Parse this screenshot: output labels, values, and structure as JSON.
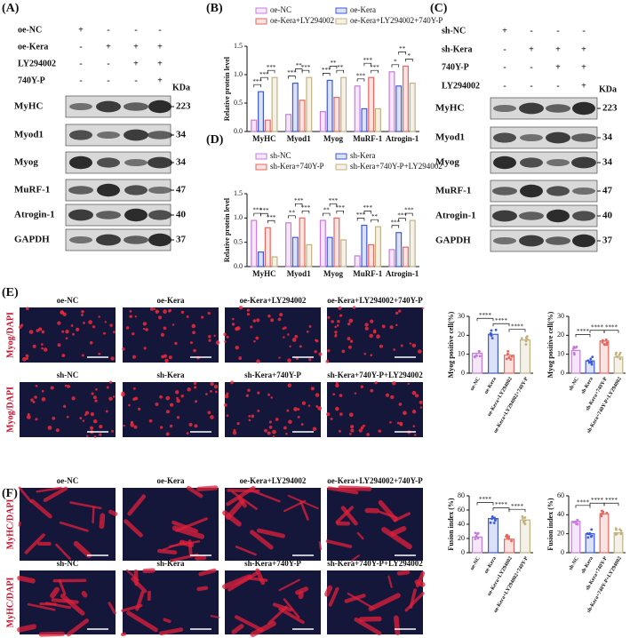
{
  "panel_labels": [
    "(A)",
    "(B)",
    "(C)",
    "(D)",
    "(E)",
    "(F)"
  ],
  "blot_a": {
    "conditions": [
      {
        "name": "oe-NC",
        "signs": [
          "+",
          "-",
          "-",
          "-"
        ]
      },
      {
        "name": "oe-Kera",
        "signs": [
          "-",
          "+",
          "+",
          "+"
        ]
      },
      {
        "name": "LY294002",
        "signs": [
          "-",
          "-",
          "+",
          "+"
        ]
      },
      {
        "name": "740Y-P",
        "signs": [
          "-",
          "-",
          "-",
          "+"
        ]
      }
    ],
    "unit": "KDa",
    "rows": [
      {
        "name": "MyHC",
        "kda": 223
      },
      {
        "name": "Myod1",
        "kda": 34
      },
      {
        "name": "Myog",
        "kda": 34
      },
      {
        "name": "MuRF-1",
        "kda": 47
      },
      {
        "name": "Atrogin-1",
        "kda": 40
      },
      {
        "name": "GAPDH",
        "kda": 37
      }
    ]
  },
  "blot_c": {
    "conditions": [
      {
        "name": "sh-NC",
        "signs": [
          "+",
          "-",
          "-",
          "-"
        ]
      },
      {
        "name": "sh-Kera",
        "signs": [
          "-",
          "+",
          "+",
          "+"
        ]
      },
      {
        "name": "740Y-P",
        "signs": [
          "-",
          "-",
          "+",
          "+"
        ]
      },
      {
        "name": "LY294002",
        "signs": [
          "-",
          "-",
          "-",
          "+"
        ]
      }
    ],
    "unit": "KDa",
    "rows": [
      {
        "name": "MyHC",
        "kda": 223
      },
      {
        "name": "Myod1",
        "kda": 34
      },
      {
        "name": "Myog",
        "kda": 34
      },
      {
        "name": "MuRF-1",
        "kda": 47
      },
      {
        "name": "Atrogin-1",
        "kda": 40
      },
      {
        "name": "GAPDH",
        "kda": 37
      }
    ]
  },
  "micrographs": {
    "e": {
      "stain": "Myog/DAPI",
      "rows": [
        [
          "oe-NC",
          "oe-Kera",
          "oe-Kera+LY294002",
          "oe-Kera+LY294002+740Y-P"
        ],
        [
          "sh-NC",
          "sh-Kera",
          "sh-Kera+740Y-P",
          "sh-Kera+740Y-P+LY294002"
        ]
      ]
    },
    "f": {
      "stain": "MyHC/DAPI",
      "rows": [
        [
          "oe-NC",
          "oe-Kera",
          "oe-Kera+LY294002",
          "oe-Kera+LY294002+740Y-P"
        ],
        [
          "sh-NC",
          "sh-Kera",
          "sh-Kera+740Y-P",
          "sh-Kera+740Y-P+LY294002"
        ]
      ]
    }
  },
  "chart_data": [
    {
      "type": "grouped-bar",
      "y_label": "Relative protein level",
      "categories": [
        "MyHC",
        "Myod1",
        "Myog",
        "MuRF-1",
        "Atrogin-1"
      ],
      "series": [
        {
          "name": "oe-NC",
          "color": "#c77cdd",
          "values": [
            0.2,
            0.3,
            0.35,
            0.8,
            1.05
          ]
        },
        {
          "name": "oe-Kera",
          "color": "#3b5bdb",
          "values": [
            0.7,
            0.85,
            0.9,
            0.4,
            0.8
          ]
        },
        {
          "name": "oe-Kera+LY294002",
          "color": "#e8665d",
          "values": [
            0.2,
            0.55,
            0.6,
            0.95,
            1.15
          ]
        },
        {
          "name": "oe-Kera+LY294002+740Y-P",
          "color": "#c2b280",
          "values": [
            0.95,
            0.95,
            0.95,
            0.4,
            0.85
          ]
        }
      ],
      "significance": [
        [
          "***",
          "***",
          "***"
        ],
        [
          "***",
          "**",
          "***"
        ],
        [
          "***",
          "**",
          "**"
        ],
        [
          "***",
          "***",
          "***"
        ],
        [
          "*",
          "**",
          "*"
        ]
      ],
      "ylim": [
        0,
        1.5
      ],
      "yticks": [
        {
          "value": 0,
          "label": "0.0"
        },
        0.5,
        {
          "value": 1,
          "label": "1.0"
        },
        1.5
      ]
    },
    {
      "type": "grouped-bar",
      "y_label": "Relative protein level",
      "categories": [
        "MyHC",
        "Myod1",
        "Myog",
        "MuRF-1",
        "Atrogin-1"
      ],
      "series": [
        {
          "name": "sh-NC",
          "color": "#c77cdd",
          "values": [
            0.95,
            0.9,
            0.95,
            0.22,
            0.35
          ]
        },
        {
          "name": "sh-Kera",
          "color": "#3b5bdb",
          "values": [
            0.3,
            0.6,
            0.6,
            0.85,
            0.7
          ]
        },
        {
          "name": "sh-Kera+740Y-P",
          "color": "#e8665d",
          "values": [
            0.8,
            1.0,
            1.0,
            0.45,
            0.4
          ]
        },
        {
          "name": "sh-Kera+740Y-P+LY294002",
          "color": "#c2b280",
          "values": [
            0.2,
            0.45,
            0.55,
            0.82,
            0.95
          ]
        }
      ],
      "significance": [
        [
          "***",
          "***",
          "***"
        ],
        [
          "**",
          "***",
          "***"
        ],
        [
          "**",
          "***",
          "***"
        ],
        [
          "***",
          "***",
          "**"
        ],
        [
          "***",
          "***",
          "***"
        ]
      ],
      "ylim": [
        0,
        1.5
      ],
      "yticks": [
        {
          "value": 0,
          "label": "0.0"
        },
        0.5,
        {
          "value": 1,
          "label": "1.0"
        },
        1.5
      ]
    },
    {
      "type": "bar",
      "y_label": "Myog positive cell(%)",
      "categories": [
        "oe-NC",
        "oe-Kera",
        "oe-Kera+LY294002",
        "oe-Kera+LY294002+740Y-P"
      ],
      "values": [
        10.5,
        20.5,
        9.5,
        17.5
      ],
      "colors": [
        "#c77cdd",
        "#3b5bdb",
        "#e8665d",
        "#c2b280"
      ],
      "significance": [
        "****",
        "****",
        "****"
      ],
      "ylim": [
        0,
        30
      ],
      "yticks": [
        0,
        10,
        20,
        30
      ]
    },
    {
      "type": "bar",
      "y_label": "Myog positive cell(%)",
      "categories": [
        "sh-NC",
        "sh-Kera",
        "sh-Kera+740Y-P",
        "sh-Kera+740Y-P+LY294002"
      ],
      "values": [
        12,
        6.5,
        17,
        8.5
      ],
      "colors": [
        "#c77cdd",
        "#3b5bdb",
        "#e8665d",
        "#c2b280"
      ],
      "significance": [
        "****",
        "****",
        "****"
      ],
      "ylim": [
        0,
        30
      ],
      "yticks": [
        0,
        10,
        20,
        30
      ]
    },
    {
      "type": "bar",
      "y_label": "Fusion index (%)",
      "categories": [
        "oe-NC",
        "oe-Kera",
        "oe-Kera+LY294002",
        "oe-Kera+LY294002+740Y-P"
      ],
      "values": [
        22,
        48,
        19,
        46
      ],
      "colors": [
        "#c77cdd",
        "#3b5bdb",
        "#e8665d",
        "#c2b280"
      ],
      "significance": [
        "****",
        "****",
        "****"
      ],
      "ylim": [
        0,
        80
      ],
      "yticks": [
        0,
        20,
        40,
        60,
        80
      ]
    },
    {
      "type": "bar",
      "y_label": "Fusion index (%)",
      "categories": [
        "sh-NC",
        "sh-Kera",
        "sh-Kera+740Y-P",
        "sh-Kera+740Y-P+LY294002"
      ],
      "values": [
        33,
        20,
        41,
        21
      ],
      "colors": [
        "#c77cdd",
        "#3b5bdb",
        "#e8665d",
        "#c2b280"
      ],
      "significance": [
        "****",
        "****",
        "****"
      ],
      "ylim": [
        0,
        60
      ],
      "yticks": [
        0,
        20,
        40,
        60
      ]
    }
  ]
}
